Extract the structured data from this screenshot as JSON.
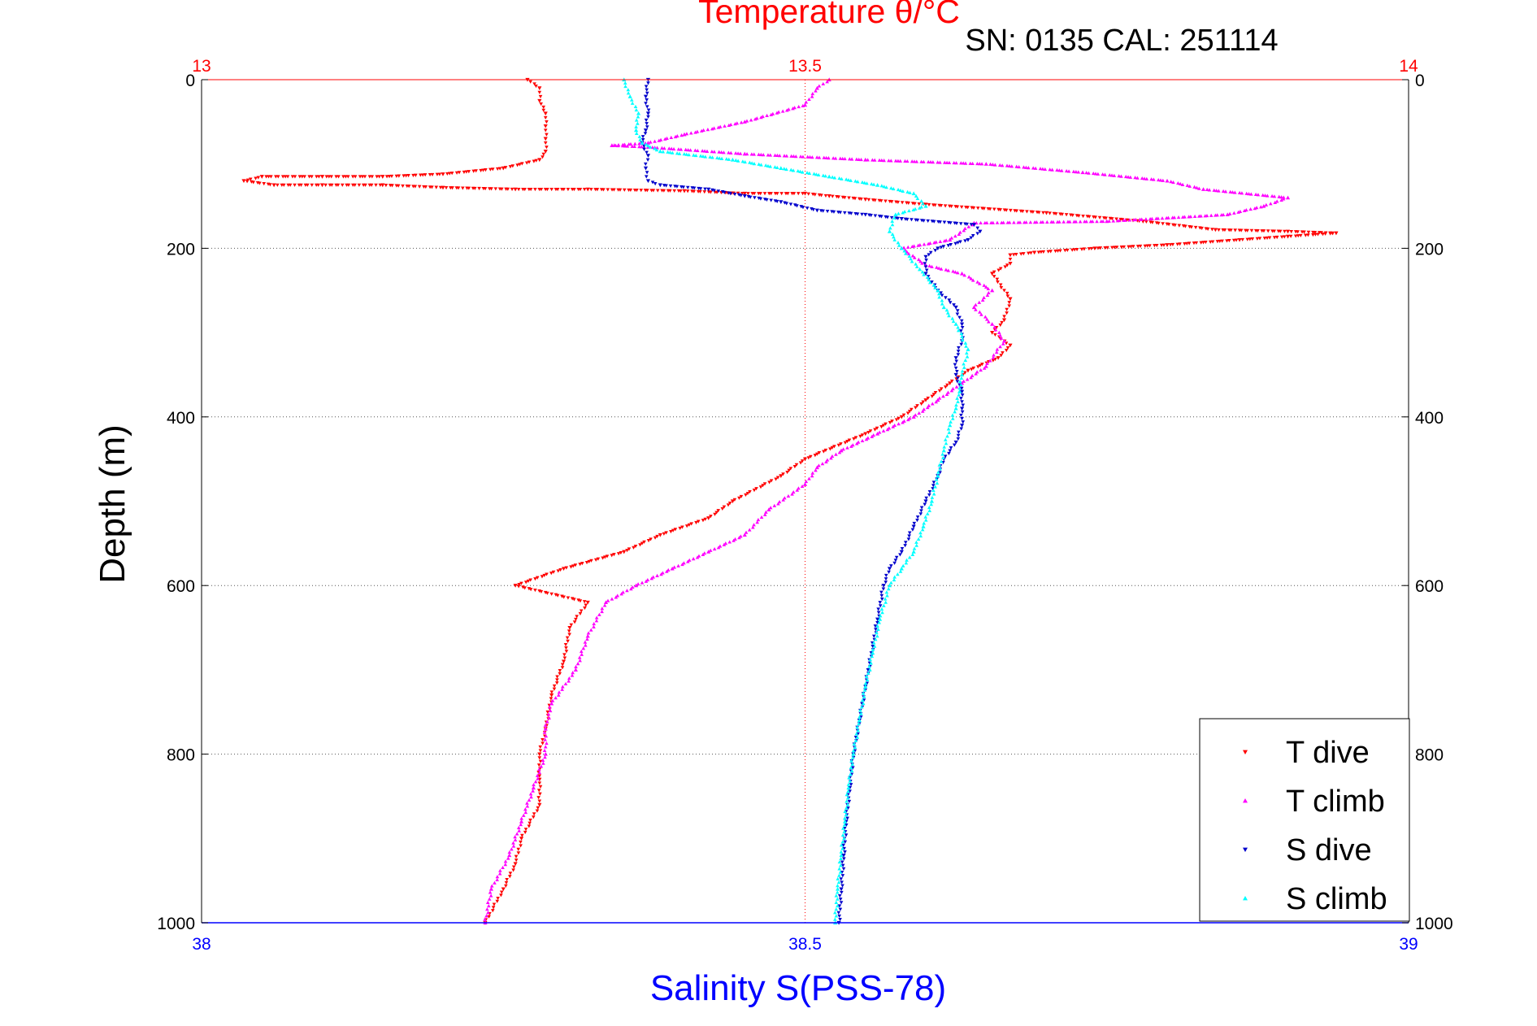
{
  "chart_data": {
    "type": "scatter",
    "title": "Temperature θ/°C",
    "subtitle": "SN: 0135  CAL: 251114",
    "ylabel": "Depth (m)",
    "xlabel_bottom": "Salinity S(PSS-78)",
    "ylim": [
      0,
      1000
    ],
    "y_reversed": true,
    "y_ticks": [
      0,
      200,
      400,
      600,
      800,
      1000
    ],
    "x_top": {
      "label": "Temperature θ/°C",
      "lim": [
        13,
        14
      ],
      "ticks": [
        13,
        13.5,
        14
      ],
      "color": "#ff0000"
    },
    "x_bottom": {
      "label": "Salinity S(PSS-78)",
      "lim": [
        38,
        39
      ],
      "ticks": [
        38,
        38.5,
        39
      ],
      "color": "#0000ff"
    },
    "grid": true,
    "legend_position": "bottom-right",
    "series": [
      {
        "name": "T dive",
        "axis": "top",
        "color": "#ff0000",
        "marker": "triangle-down",
        "points": [
          [
            13.27,
            0
          ],
          [
            13.28,
            10
          ],
          [
            13.28,
            25
          ],
          [
            13.285,
            40
          ],
          [
            13.285,
            55
          ],
          [
            13.285,
            70
          ],
          [
            13.285,
            85
          ],
          [
            13.28,
            95
          ],
          [
            13.25,
            105
          ],
          [
            13.2,
            112
          ],
          [
            13.15,
            115
          ],
          [
            13.1,
            115
          ],
          [
            13.05,
            115
          ],
          [
            13.035,
            120
          ],
          [
            13.06,
            125
          ],
          [
            13.1,
            125
          ],
          [
            13.15,
            125
          ],
          [
            13.2,
            128
          ],
          [
            13.26,
            130
          ],
          [
            13.32,
            130
          ],
          [
            13.4,
            132
          ],
          [
            13.45,
            135
          ],
          [
            13.5,
            135
          ],
          [
            13.52,
            138
          ],
          [
            13.55,
            142
          ],
          [
            13.6,
            148
          ],
          [
            13.7,
            158
          ],
          [
            13.78,
            168
          ],
          [
            13.84,
            178
          ],
          [
            13.9,
            180
          ],
          [
            13.94,
            182
          ],
          [
            13.9,
            186
          ],
          [
            13.86,
            190
          ],
          [
            13.8,
            196
          ],
          [
            13.74,
            200
          ],
          [
            13.69,
            205
          ],
          [
            13.67,
            208
          ],
          [
            13.67,
            218
          ],
          [
            13.655,
            230
          ],
          [
            13.67,
            260
          ],
          [
            13.665,
            285
          ],
          [
            13.655,
            300
          ],
          [
            13.67,
            315
          ],
          [
            13.66,
            330
          ],
          [
            13.635,
            345
          ],
          [
            13.62,
            360
          ],
          [
            13.6,
            380
          ],
          [
            13.58,
            400
          ],
          [
            13.55,
            420
          ],
          [
            13.5,
            450
          ],
          [
            13.48,
            470
          ],
          [
            13.44,
            500
          ],
          [
            13.42,
            520
          ],
          [
            13.38,
            540
          ],
          [
            13.35,
            560
          ],
          [
            13.3,
            580
          ],
          [
            13.26,
            600
          ],
          [
            13.32,
            620
          ],
          [
            13.305,
            650
          ],
          [
            13.3,
            690
          ],
          [
            13.29,
            730
          ],
          [
            13.285,
            770
          ],
          [
            13.28,
            800
          ],
          [
            13.28,
            830
          ],
          [
            13.28,
            860
          ],
          [
            13.265,
            900
          ],
          [
            13.26,
            930
          ],
          [
            13.25,
            960
          ],
          [
            13.235,
            1000
          ]
        ]
      },
      {
        "name": "T climb",
        "axis": "top",
        "color": "#ff00ff",
        "marker": "triangle-up",
        "points": [
          [
            13.235,
            1000
          ],
          [
            13.24,
            960
          ],
          [
            13.255,
            920
          ],
          [
            13.265,
            880
          ],
          [
            13.275,
            840
          ],
          [
            13.285,
            800
          ],
          [
            13.285,
            770
          ],
          [
            13.29,
            740
          ],
          [
            13.31,
            700
          ],
          [
            13.32,
            660
          ],
          [
            13.335,
            620
          ],
          [
            13.36,
            600
          ],
          [
            13.39,
            580
          ],
          [
            13.42,
            560
          ],
          [
            13.45,
            540
          ],
          [
            13.47,
            510
          ],
          [
            13.5,
            480
          ],
          [
            13.51,
            460
          ],
          [
            13.53,
            440
          ],
          [
            13.56,
            420
          ],
          [
            13.59,
            400
          ],
          [
            13.61,
            380
          ],
          [
            13.63,
            360
          ],
          [
            13.65,
            340
          ],
          [
            13.665,
            310
          ],
          [
            13.655,
            290
          ],
          [
            13.64,
            270
          ],
          [
            13.655,
            250
          ],
          [
            13.63,
            230
          ],
          [
            13.6,
            220
          ],
          [
            13.58,
            200
          ],
          [
            13.62,
            190
          ],
          [
            13.64,
            170
          ],
          [
            13.75,
            168
          ],
          [
            13.85,
            160
          ],
          [
            13.88,
            150
          ],
          [
            13.9,
            140
          ],
          [
            13.83,
            130
          ],
          [
            13.8,
            120
          ],
          [
            13.73,
            110
          ],
          [
            13.65,
            100
          ],
          [
            13.55,
            95
          ],
          [
            13.45,
            88
          ],
          [
            13.37,
            80
          ],
          [
            13.34,
            78
          ],
          [
            13.37,
            75
          ],
          [
            13.4,
            65
          ],
          [
            13.45,
            50
          ],
          [
            13.5,
            30
          ],
          [
            13.51,
            10
          ],
          [
            13.52,
            0
          ]
        ]
      },
      {
        "name": "S dive",
        "axis": "bottom",
        "color": "#0000cc",
        "marker": "triangle-down",
        "points": [
          [
            38.37,
            0
          ],
          [
            38.368,
            20
          ],
          [
            38.37,
            40
          ],
          [
            38.368,
            60
          ],
          [
            38.365,
            75
          ],
          [
            38.37,
            90
          ],
          [
            38.368,
            105
          ],
          [
            38.37,
            120
          ],
          [
            38.38,
            125
          ],
          [
            38.42,
            130
          ],
          [
            38.45,
            138
          ],
          [
            38.48,
            145
          ],
          [
            38.51,
            155
          ],
          [
            38.55,
            160
          ],
          [
            38.58,
            165
          ],
          [
            38.64,
            172
          ],
          [
            38.645,
            180
          ],
          [
            38.635,
            190
          ],
          [
            38.61,
            200
          ],
          [
            38.6,
            210
          ],
          [
            38.6,
            230
          ],
          [
            38.61,
            250
          ],
          [
            38.625,
            270
          ],
          [
            38.63,
            290
          ],
          [
            38.63,
            310
          ],
          [
            38.625,
            330
          ],
          [
            38.625,
            350
          ],
          [
            38.63,
            370
          ],
          [
            38.63,
            390
          ],
          [
            38.63,
            410
          ],
          [
            38.625,
            430
          ],
          [
            38.615,
            450
          ],
          [
            38.61,
            470
          ],
          [
            38.6,
            500
          ],
          [
            38.59,
            530
          ],
          [
            38.58,
            560
          ],
          [
            38.57,
            580
          ],
          [
            38.565,
            600
          ],
          [
            38.56,
            640
          ],
          [
            38.555,
            680
          ],
          [
            38.55,
            720
          ],
          [
            38.545,
            760
          ],
          [
            38.54,
            800
          ],
          [
            38.537,
            840
          ],
          [
            38.534,
            880
          ],
          [
            38.532,
            920
          ],
          [
            38.53,
            960
          ],
          [
            38.528,
            1000
          ]
        ]
      },
      {
        "name": "S climb",
        "axis": "bottom",
        "color": "#00ffff",
        "marker": "triangle-up",
        "points": [
          [
            38.525,
            1000
          ],
          [
            38.527,
            960
          ],
          [
            38.53,
            920
          ],
          [
            38.533,
            880
          ],
          [
            38.536,
            840
          ],
          [
            38.54,
            800
          ],
          [
            38.545,
            760
          ],
          [
            38.55,
            720
          ],
          [
            38.556,
            680
          ],
          [
            38.562,
            640
          ],
          [
            38.57,
            600
          ],
          [
            38.58,
            580
          ],
          [
            38.59,
            560
          ],
          [
            38.598,
            530
          ],
          [
            38.605,
            500
          ],
          [
            38.61,
            470
          ],
          [
            38.615,
            440
          ],
          [
            38.62,
            410
          ],
          [
            38.625,
            390
          ],
          [
            38.628,
            370
          ],
          [
            38.63,
            350
          ],
          [
            38.635,
            320
          ],
          [
            38.625,
            290
          ],
          [
            38.615,
            270
          ],
          [
            38.61,
            250
          ],
          [
            38.595,
            225
          ],
          [
            38.58,
            200
          ],
          [
            38.57,
            180
          ],
          [
            38.575,
            160
          ],
          [
            38.6,
            150
          ],
          [
            38.59,
            135
          ],
          [
            38.56,
            125
          ],
          [
            38.52,
            115
          ],
          [
            38.48,
            105
          ],
          [
            38.44,
            95
          ],
          [
            38.38,
            85
          ],
          [
            38.365,
            75
          ],
          [
            38.36,
            60
          ],
          [
            38.362,
            40
          ],
          [
            38.355,
            20
          ],
          [
            38.35,
            0
          ]
        ]
      }
    ]
  }
}
